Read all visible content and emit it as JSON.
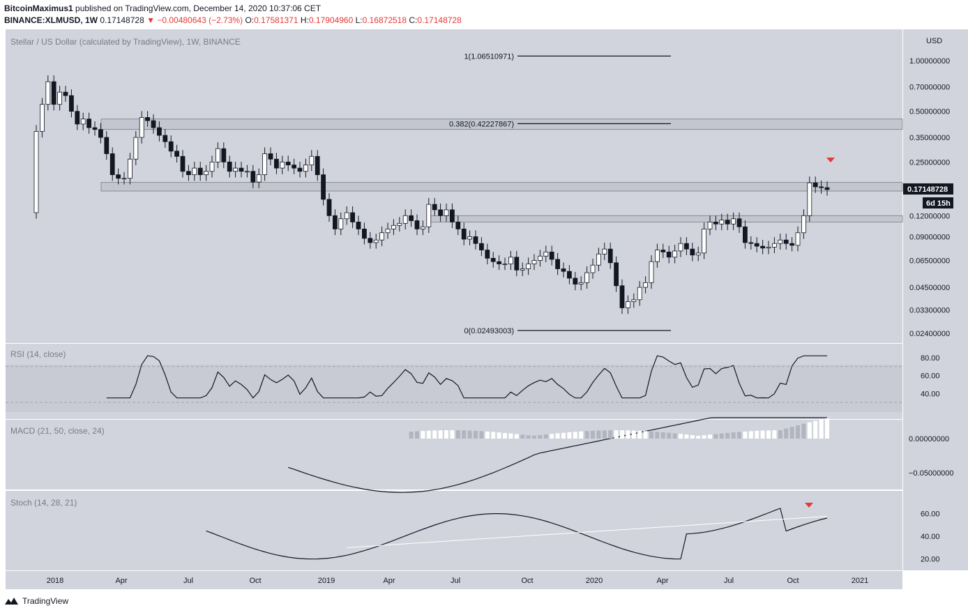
{
  "header": {
    "author": "BitcoinMaximus1",
    "published_text": "published on TradingView.com, December 14, 2020 10:37:06 CET",
    "symbol": "BINANCE:XLMUSD, 1W",
    "last": "0.17148728",
    "arrow": "▼",
    "change": "−0.00480643 (−2.73%)",
    "o_label": "O:",
    "o": "0.17581371",
    "h_label": "H:",
    "h": "0.17904960",
    "l_label": "L:",
    "l": "0.16872518",
    "c_label": "C:",
    "c": "0.17148728"
  },
  "footer": {
    "brand": "TradingView"
  },
  "colors": {
    "bg": "#d1d4dc",
    "up": "#ffffff",
    "down": "#131722",
    "marker": "#e53935",
    "signal": "#ffffff"
  },
  "chart_data": [
    {
      "type": "candlestick",
      "title": "Stellar / US Dollar (calculated by TradingView), 1W, BINANCE",
      "y_scale": "log",
      "y_unit": "USD",
      "yticks": [
        "1.00000000",
        "0.70000000",
        "0.50000000",
        "0.35000000",
        "0.25000000",
        "0.12000000",
        "0.09000000",
        "0.06500000",
        "0.04500000",
        "0.03300000",
        "0.02400000"
      ],
      "x_ticks": [
        "2018",
        "Apr",
        "Jul",
        "Oct",
        "2019",
        "Apr",
        "Jul",
        "Oct",
        "2020",
        "Apr",
        "Jul",
        "Oct",
        "2021"
      ],
      "last_price_label": "0.17148728",
      "countdown_label": "6d 15h",
      "fib_levels": [
        {
          "label": "1(1.06510971)",
          "value": 1.06510971
        },
        {
          "label": "0.382(0.42227867)",
          "value": 0.42227867
        },
        {
          "label": "0(0.02493003)",
          "value": 0.02493003
        }
      ],
      "zones": [
        {
          "low": 0.39,
          "high": 0.45
        },
        {
          "low": 0.168,
          "high": 0.189
        },
        {
          "low": 0.11,
          "high": 0.12
        }
      ],
      "marker": "down-triangle above Nov 2020 high",
      "closes": [
        0.38,
        0.55,
        0.75,
        0.55,
        0.65,
        0.62,
        0.5,
        0.42,
        0.45,
        0.4,
        0.39,
        0.35,
        0.28,
        0.21,
        0.2,
        0.2,
        0.26,
        0.35,
        0.46,
        0.44,
        0.4,
        0.36,
        0.33,
        0.29,
        0.27,
        0.22,
        0.21,
        0.23,
        0.21,
        0.22,
        0.25,
        0.3,
        0.25,
        0.22,
        0.23,
        0.22,
        0.22,
        0.19,
        0.21,
        0.28,
        0.26,
        0.23,
        0.25,
        0.24,
        0.23,
        0.22,
        0.24,
        0.27,
        0.21,
        0.15,
        0.12,
        0.1,
        0.115,
        0.125,
        0.11,
        0.1,
        0.088,
        0.083,
        0.086,
        0.095,
        0.1,
        0.105,
        0.108,
        0.12,
        0.112,
        0.1,
        0.103,
        0.14,
        0.13,
        0.12,
        0.13,
        0.11,
        0.1,
        0.087,
        0.09,
        0.082,
        0.075,
        0.067,
        0.064,
        0.062,
        0.062,
        0.068,
        0.057,
        0.058,
        0.062,
        0.065,
        0.069,
        0.073,
        0.066,
        0.058,
        0.056,
        0.051,
        0.047,
        0.048,
        0.055,
        0.061,
        0.071,
        0.076,
        0.063,
        0.046,
        0.034,
        0.037,
        0.038,
        0.045,
        0.048,
        0.064,
        0.075,
        0.073,
        0.068,
        0.074,
        0.082,
        0.076,
        0.07,
        0.072,
        0.1,
        0.11,
        0.107,
        0.113,
        0.107,
        0.115,
        0.103,
        0.083,
        0.082,
        0.079,
        0.077,
        0.078,
        0.082,
        0.086,
        0.082,
        0.08,
        0.095,
        0.12,
        0.188,
        0.178,
        0.176,
        0.1715
      ]
    },
    {
      "type": "line",
      "title": "RSI (14, close)",
      "yticks": [
        "80.00",
        "60.00",
        "40.00"
      ],
      "bands": [
        70,
        30
      ],
      "ylim": [
        20,
        90
      ]
    },
    {
      "type": "line",
      "title": "MACD (21, 50, close, 24)",
      "yticks": [
        "0.00000000",
        "−0.05000000"
      ],
      "series": [
        {
          "name": "MACD"
        },
        {
          "name": "Signal"
        },
        {
          "name": "Histogram"
        }
      ]
    },
    {
      "type": "line",
      "title": "Stoch (14, 28, 21)",
      "yticks": [
        "60.00",
        "40.00",
        "20.00"
      ],
      "ylim": [
        10,
        80
      ],
      "series": [
        {
          "name": "%K"
        },
        {
          "name": "%D"
        }
      ]
    }
  ]
}
